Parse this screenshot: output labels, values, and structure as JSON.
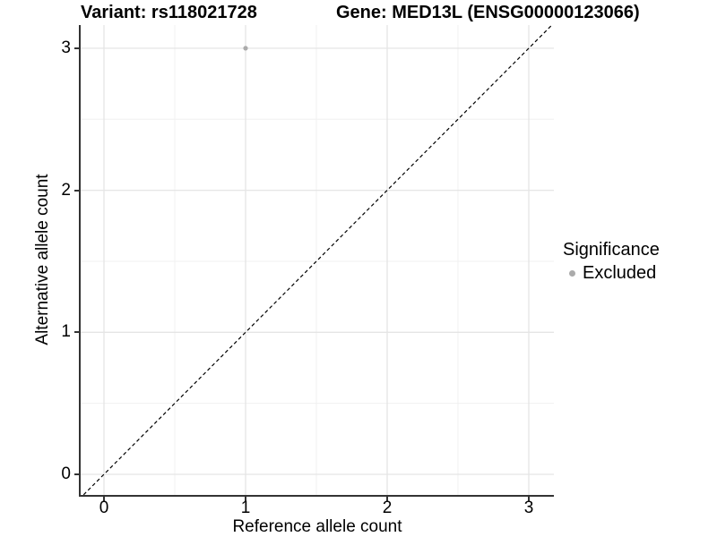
{
  "figure": {
    "title_variant": "Variant: rs118021728",
    "title_gene": "Gene: MED13L (ENSG00000123066)"
  },
  "chart_data": {
    "type": "scatter",
    "title": "Variant: rs118021728   Gene: MED13L (ENSG00000123066)",
    "xlabel": "Reference allele count",
    "ylabel": "Alternative allele count",
    "xlim": [
      -0.165,
      3.18
    ],
    "ylim": [
      -0.145,
      3.16
    ],
    "xticks": [
      0,
      1,
      2,
      3
    ],
    "yticks": [
      0,
      1,
      2,
      3
    ],
    "minor_grid_step": 0.5,
    "grid": "major and minor gridlines on, white panel",
    "reference_line": {
      "kind": "identity y=x",
      "style": "dashed",
      "color": "#000000"
    },
    "series": [
      {
        "name": "Excluded",
        "color": "#ababab",
        "points": [
          {
            "x": 1,
            "y": 3
          }
        ]
      }
    ],
    "legend": {
      "title": "Significance",
      "position": "right",
      "entries": [
        {
          "label": "Excluded",
          "color": "#ababab"
        }
      ]
    },
    "colors": {
      "axis_line": "#333333",
      "grid_major": "#e5e5e5",
      "grid_minor": "#f0f0f0",
      "text": "#000000",
      "background": "#ffffff"
    }
  }
}
